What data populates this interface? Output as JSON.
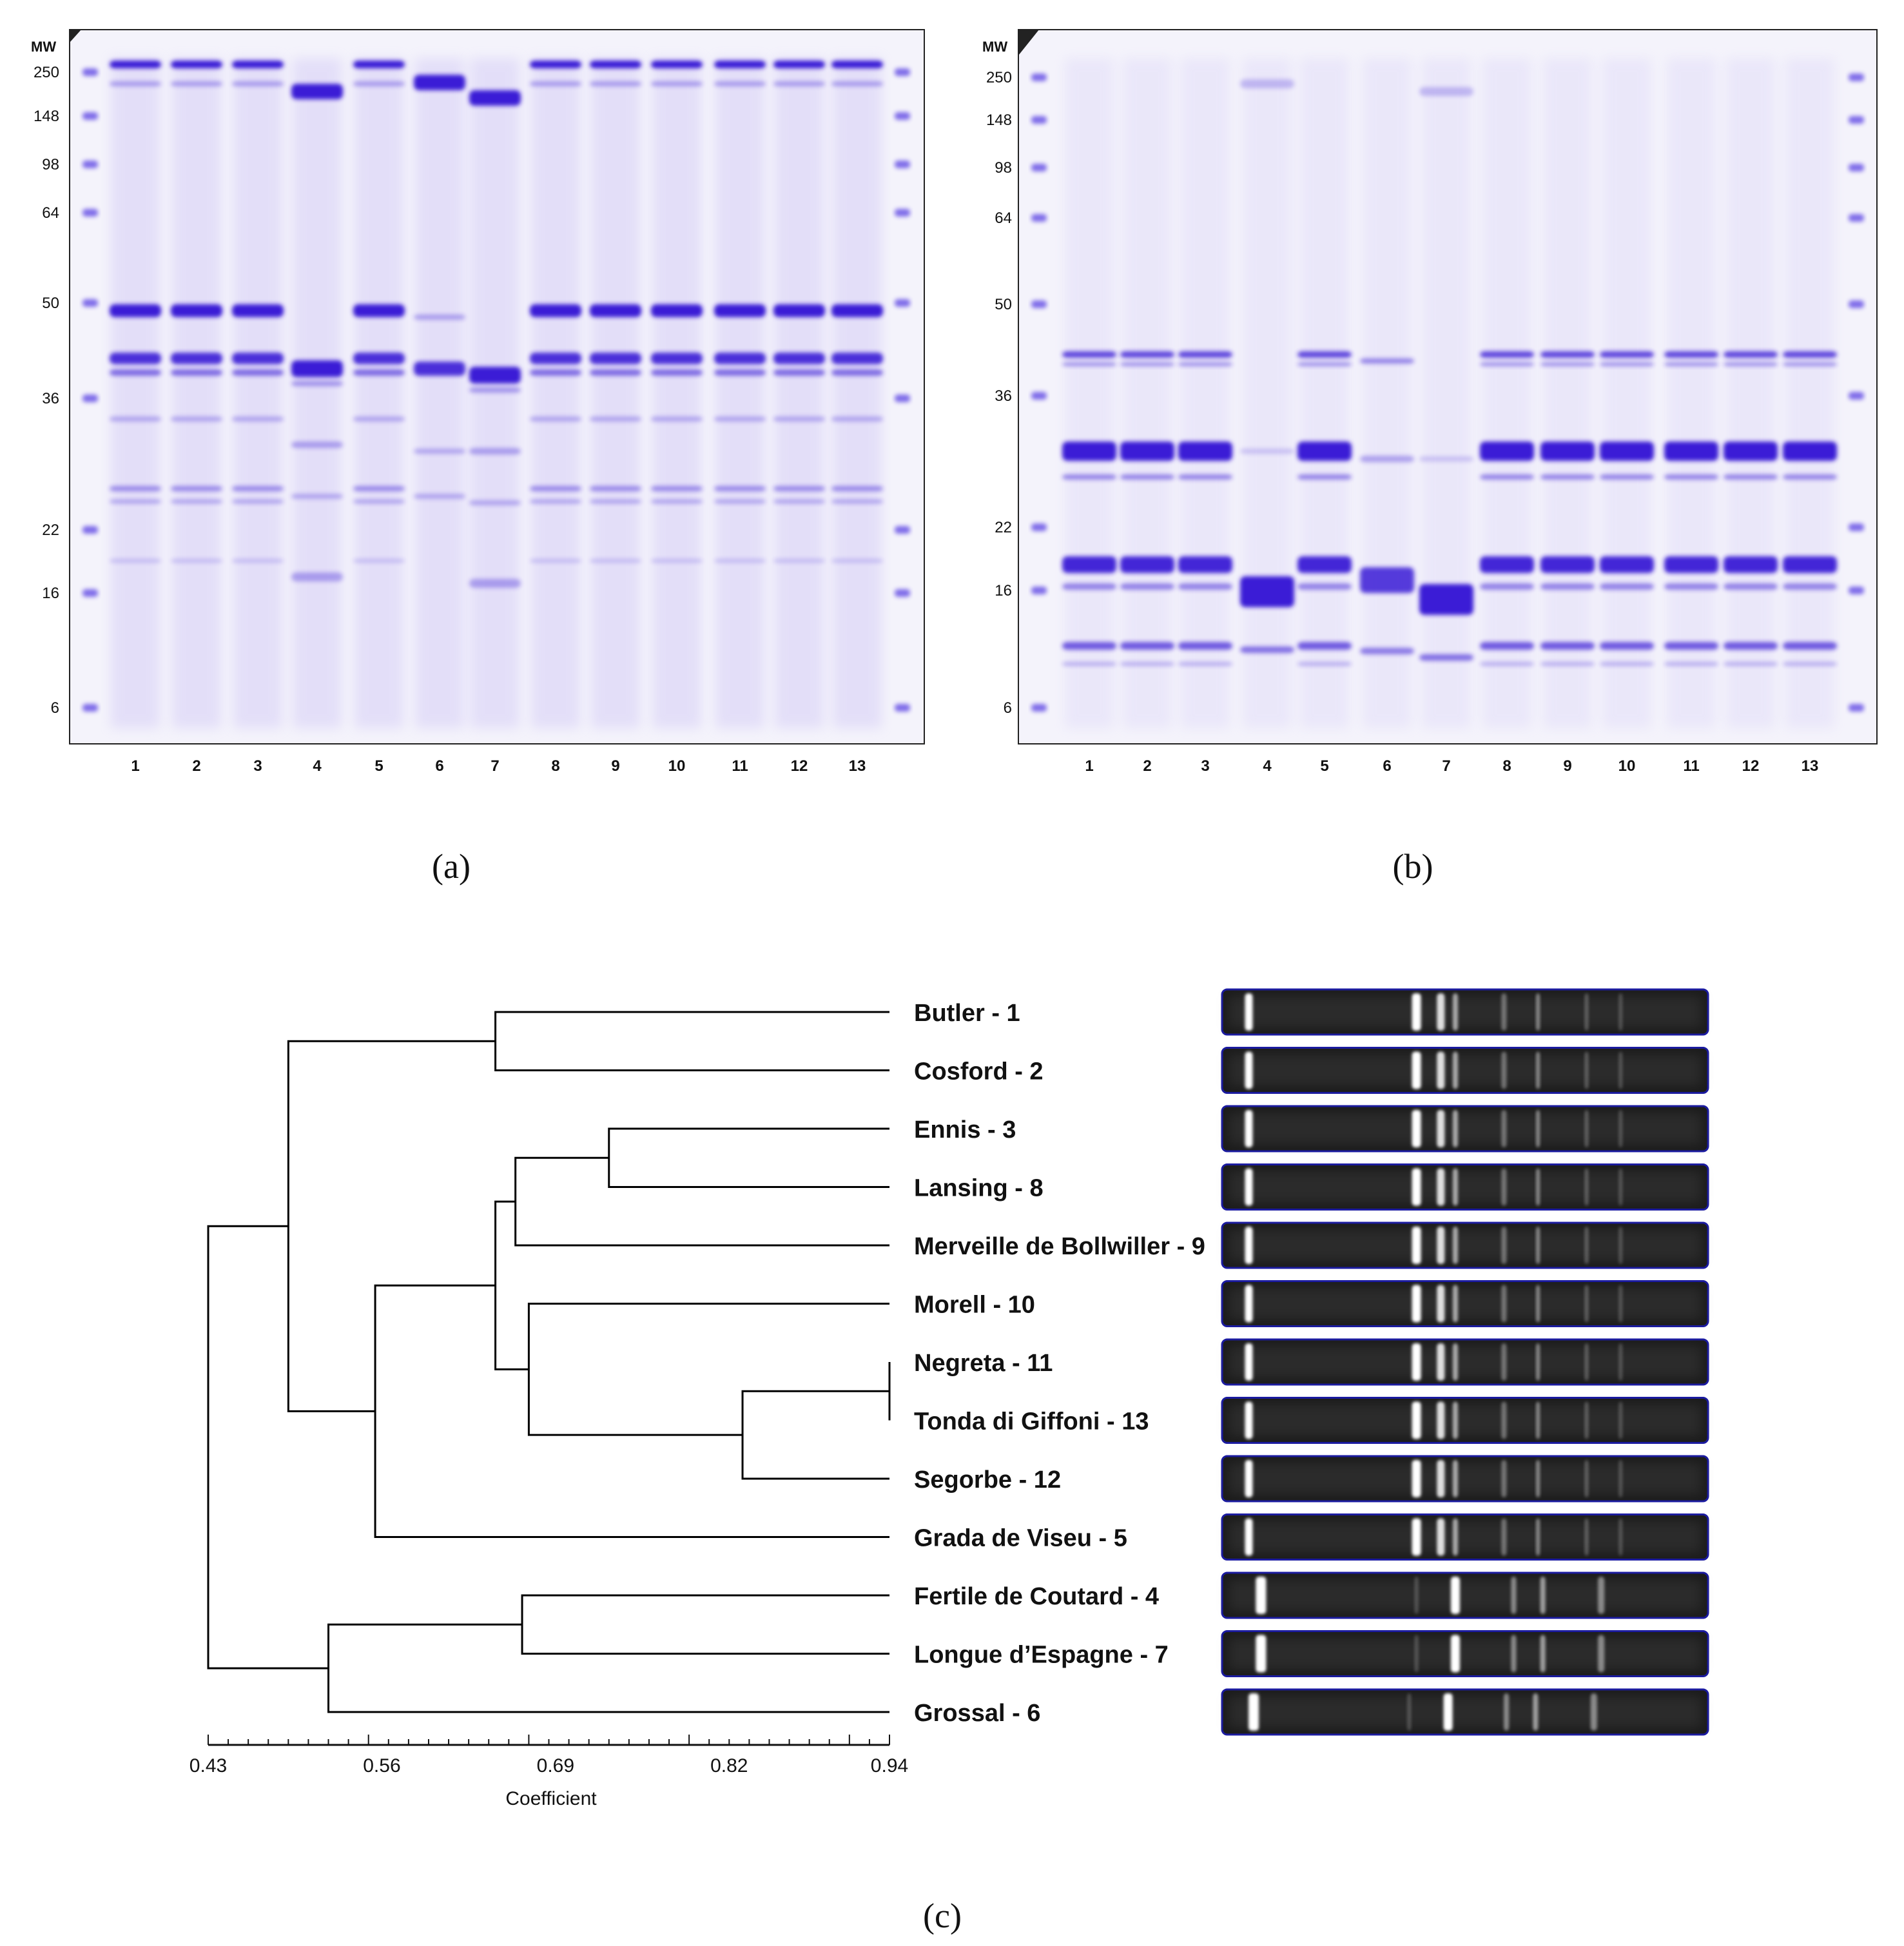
{
  "panel_a": {
    "label": "(a)",
    "mw_header": "MW",
    "mw_markers": [
      "250",
      "148",
      "98",
      "64",
      "50",
      "36",
      "22",
      "16",
      "6"
    ],
    "lanes": [
      "1",
      "2",
      "3",
      "4",
      "5",
      "6",
      "7",
      "8",
      "9",
      "10",
      "11",
      "12",
      "13"
    ]
  },
  "panel_b": {
    "label": "(b)",
    "mw_header": "MW",
    "mw_markers": [
      "250",
      "148",
      "98",
      "64",
      "50",
      "36",
      "22",
      "16",
      "6"
    ],
    "lanes": [
      "1",
      "2",
      "3",
      "4",
      "5",
      "6",
      "7",
      "8",
      "9",
      "10",
      "11",
      "12",
      "13"
    ]
  },
  "panel_c": {
    "label": "(c)",
    "axis": {
      "title": "Coefficient",
      "ticks": [
        "0.43",
        "0.56",
        "0.69",
        "0.82",
        "0.94"
      ],
      "range": [
        0.43,
        0.94
      ]
    },
    "leaves": [
      "Butler - 1",
      "Cosford - 2",
      "Ennis - 3",
      "Lansing - 8",
      "Merveille  de Bollwiller - 9",
      "Morell - 10",
      "Negreta - 11",
      "Tonda di Giffoni - 13",
      "Segorbe - 12",
      "Grada de Viseu - 5",
      "Fertile de Coutard - 4",
      "Longue d’Espagne - 7",
      "Grossal - 6"
    ],
    "merges": [
      {
        "left": "leaf:6",
        "right": "leaf:7",
        "coef": 0.94
      },
      {
        "left": "leaf:2",
        "right": "leaf:3",
        "coef": 0.73
      },
      {
        "left": "node:0",
        "right": "leaf:8",
        "coef": 0.83
      },
      {
        "left": "node:1",
        "right": "leaf:4",
        "coef": 0.66
      },
      {
        "left": "leaf:0",
        "right": "leaf:1",
        "coef": 0.645
      },
      {
        "left": "leaf:10",
        "right": "leaf:11",
        "coef": 0.665
      },
      {
        "left": "node:2",
        "right": "leaf:5",
        "coef": 0.67
      },
      {
        "left": "node:3",
        "right": "node:6",
        "coef": 0.645
      },
      {
        "left": "node:7",
        "right": "leaf:9",
        "coef": 0.555
      },
      {
        "left": "node:4",
        "right": "node:8",
        "coef": 0.49
      },
      {
        "left": "node:5",
        "right": "leaf:12",
        "coef": 0.52
      },
      {
        "left": "node:9",
        "right": "node:10",
        "coef": 0.43
      }
    ]
  },
  "colors": {
    "gel_bg": "#f4f3fb",
    "band": "#3a1fd6",
    "strip_border": "#1a1aa0",
    "dendro_line": "#000000"
  }
}
